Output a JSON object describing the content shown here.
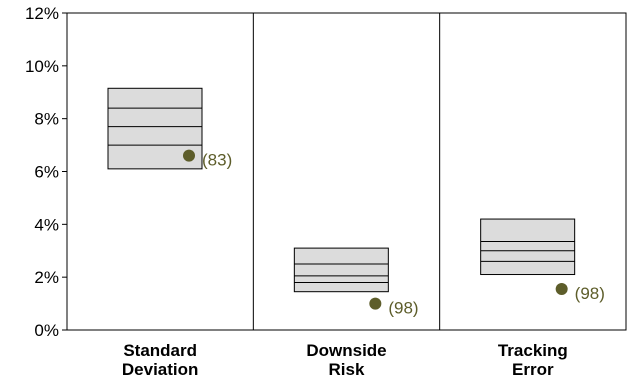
{
  "chart_data": {
    "type": "box",
    "title": "",
    "xlabel": "",
    "ylabel": "",
    "ylim": [
      0,
      12
    ],
    "y_ticks": [
      "0%",
      "2%",
      "4%",
      "6%",
      "8%",
      "10%",
      "12%"
    ],
    "y_tick_values": [
      0,
      2,
      4,
      6,
      8,
      10,
      12
    ],
    "grid": false,
    "legend": "none",
    "colors": {
      "box_fill": "#dcdcdc",
      "box_stroke": "#000000",
      "point": "#5d5d2a",
      "point_label": "#5d5d2a"
    },
    "categories": [
      {
        "label_lines": [
          "Standard",
          "Deviation"
        ],
        "box": [
          6.1,
          7.0,
          7.7,
          8.4,
          9.15
        ],
        "point": 6.6,
        "point_label": "(83)"
      },
      {
        "label_lines": [
          "Downside",
          "Risk"
        ],
        "box": [
          1.45,
          1.8,
          2.05,
          2.5,
          3.1
        ],
        "point": 1.0,
        "point_label": "(98)"
      },
      {
        "label_lines": [
          "Tracking",
          "Error"
        ],
        "box": [
          2.1,
          2.6,
          3.0,
          3.35,
          4.2
        ],
        "point": 1.55,
        "point_label": "(98)"
      }
    ]
  }
}
